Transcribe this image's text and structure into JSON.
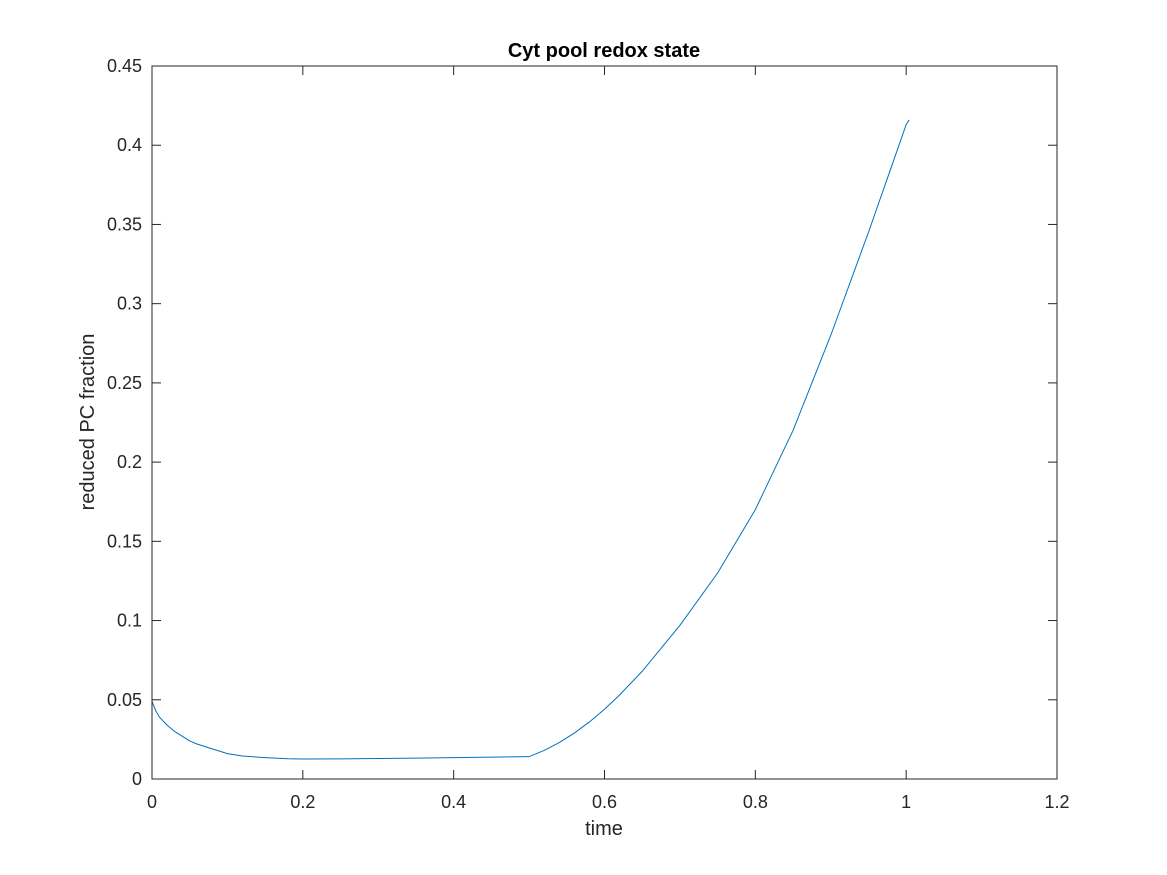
{
  "chart_data": {
    "type": "line",
    "title": "Cyt pool redox state",
    "xlabel": "time",
    "ylabel": "reduced PC fraction",
    "xlim": [
      0,
      1.2
    ],
    "ylim": [
      0,
      0.45
    ],
    "xticks": [
      0,
      0.2,
      0.4,
      0.6,
      0.8,
      1,
      1.2
    ],
    "xtick_labels": [
      "0",
      "0.2",
      "0.4",
      "0.6",
      "0.8",
      "1",
      "1.2"
    ],
    "yticks": [
      0,
      0.05,
      0.1,
      0.15,
      0.2,
      0.25,
      0.3,
      0.35,
      0.4,
      0.45
    ],
    "ytick_labels": [
      "0",
      "0.05",
      "0.1",
      "0.15",
      "0.2",
      "0.25",
      "0.3",
      "0.35",
      "0.4",
      "0.45"
    ],
    "grid": false,
    "box": true,
    "series": [
      {
        "color": "#0072bd",
        "x": [
          0,
          0.005,
          0.01,
          0.02,
          0.03,
          0.04,
          0.05,
          0.06,
          0.08,
          0.1,
          0.12,
          0.15,
          0.18,
          0.2,
          0.25,
          0.3,
          0.35,
          0.4,
          0.45,
          0.5,
          0.52,
          0.54,
          0.56,
          0.58,
          0.6,
          0.62,
          0.65,
          0.7,
          0.75,
          0.8,
          0.85,
          0.9,
          0.95,
          1.0,
          1.004
        ],
        "y": [
          0.049,
          0.043,
          0.039,
          0.034,
          0.03,
          0.027,
          0.024,
          0.022,
          0.019,
          0.016,
          0.0145,
          0.0135,
          0.0128,
          0.0126,
          0.0127,
          0.0129,
          0.0132,
          0.0135,
          0.0138,
          0.0141,
          0.018,
          0.023,
          0.029,
          0.036,
          0.044,
          0.053,
          0.068,
          0.097,
          0.13,
          0.17,
          0.22,
          0.28,
          0.345,
          0.413,
          0.416
        ]
      }
    ]
  }
}
